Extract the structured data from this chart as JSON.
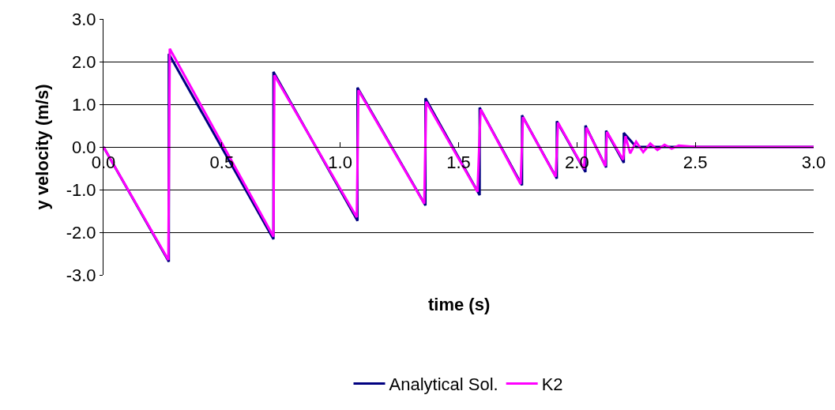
{
  "chart_data": {
    "type": "line",
    "xlabel": "time (s)",
    "ylabel": "y velocity (m/s)",
    "xlim": [
      0,
      3.0
    ],
    "xticks": [
      {
        "value": 0,
        "label": "0.0"
      },
      0.5,
      {
        "value": 1,
        "label": "1.0"
      },
      1.5,
      {
        "value": 2,
        "label": "2.0"
      },
      2.5,
      {
        "value": 3,
        "label": "3.0"
      }
    ],
    "ylim": [
      -3.0,
      3.0
    ],
    "yticks": [
      {
        "value": -3,
        "label": "-3.0"
      },
      {
        "value": -2,
        "label": "-2.0"
      },
      {
        "value": -1,
        "label": "-1.0"
      },
      {
        "value": 0,
        "label": "0.0"
      },
      {
        "value": 1,
        "label": "1.0"
      },
      {
        "value": 2,
        "label": "2.0"
      },
      {
        "value": 3,
        "label": "3.0"
      }
    ],
    "grid": "y",
    "legend": "bottom",
    "marker": "none",
    "line_style": "solid",
    "series": [
      {
        "name": "Analytical Sol.",
        "color": "#000080",
        "x": [
          0,
          0.276,
          0.276,
          0.718,
          0.718,
          1.073,
          1.073,
          1.36,
          1.36,
          1.589,
          1.589,
          1.768,
          1.768,
          1.915,
          1.915,
          2.036,
          2.036,
          2.123,
          2.123,
          2.198,
          2.198,
          2.25,
          3.0
        ],
        "values": [
          0,
          -2.69,
          2.18,
          -2.16,
          1.76,
          -1.73,
          1.39,
          -1.37,
          1.14,
          -1.13,
          0.92,
          -0.9,
          0.74,
          -0.74,
          0.6,
          -0.59,
          0.5,
          -0.48,
          0.38,
          -0.37,
          0.33,
          0,
          0
        ]
      },
      {
        "name": "K2",
        "color": "#ff00ff",
        "x": [
          0,
          0.274,
          0.28,
          0.718,
          0.722,
          1.07,
          1.077,
          1.355,
          1.363,
          1.58,
          1.593,
          1.762,
          1.772,
          1.91,
          1.92,
          2.03,
          2.04,
          2.12,
          2.127,
          2.195,
          2.205,
          2.225,
          2.25,
          2.28,
          2.31,
          2.34,
          2.37,
          2.4,
          2.43,
          2.46,
          2.5,
          3.0
        ],
        "values": [
          0,
          -2.65,
          2.3,
          -2.1,
          1.68,
          -1.65,
          1.33,
          -1.33,
          1.06,
          -1.05,
          0.88,
          -0.87,
          0.7,
          -0.7,
          0.57,
          -0.52,
          0.45,
          -0.45,
          0.35,
          -0.3,
          0.25,
          -0.15,
          0.12,
          -0.12,
          0.08,
          -0.07,
          0.05,
          -0.04,
          0.03,
          0.02,
          0,
          0
        ]
      }
    ]
  }
}
